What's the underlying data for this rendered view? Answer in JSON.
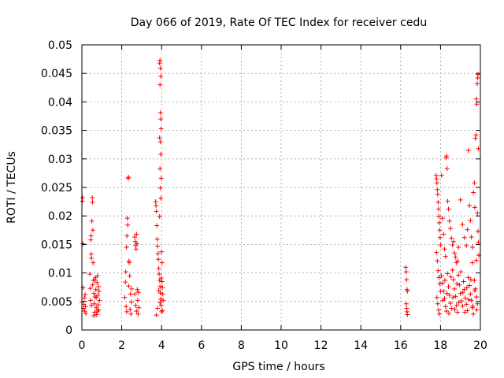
{
  "chart_data": {
    "type": "scatter",
    "title": "Day 066 of 2019, Rate Of TEC Index for receiver cedu",
    "xlabel": "GPS time / hours",
    "ylabel": "ROTI / TECUs",
    "xlim": [
      0,
      20
    ],
    "ylim": [
      0,
      0.05
    ],
    "xticks": [
      "0",
      "2",
      "4",
      "6",
      "8",
      "10",
      "12",
      "14",
      "16",
      "18",
      "20"
    ],
    "yticks": [
      "0",
      "0.005",
      "0.01",
      "0.015",
      "0.02",
      "0.025",
      "0.03",
      "0.035",
      "0.04",
      "0.045",
      "0.05"
    ],
    "grid": true,
    "marker": "plus",
    "color": "#ff0000",
    "series": [
      {
        "name": "ROTI",
        "points": [
          [
            0.0,
            0.0049
          ],
          [
            0.02,
            0.0226
          ],
          [
            0.03,
            0.0232
          ],
          [
            0.05,
            0.0151
          ],
          [
            0.06,
            0.0074
          ],
          [
            0.08,
            0.0038
          ],
          [
            0.1,
            0.0045
          ],
          [
            0.12,
            0.0056
          ],
          [
            0.14,
            0.0033
          ],
          [
            0.16,
            0.0062
          ],
          [
            0.18,
            0.0041
          ],
          [
            0.2,
            0.0029
          ],
          [
            0.4,
            0.0098
          ],
          [
            0.42,
            0.0073
          ],
          [
            0.44,
            0.0052
          ],
          [
            0.45,
            0.0158
          ],
          [
            0.46,
            0.0165
          ],
          [
            0.47,
            0.0133
          ],
          [
            0.48,
            0.0126
          ],
          [
            0.5,
            0.0191
          ],
          [
            0.52,
            0.0232
          ],
          [
            0.53,
            0.0224
          ],
          [
            0.55,
            0.0175
          ],
          [
            0.56,
            0.0118
          ],
          [
            0.58,
            0.0087
          ],
          [
            0.6,
            0.0064
          ],
          [
            0.62,
            0.0046
          ],
          [
            0.64,
            0.0031
          ],
          [
            0.66,
            0.0058
          ],
          [
            0.68,
            0.0092
          ],
          [
            0.7,
            0.0071
          ],
          [
            0.72,
            0.0039
          ],
          [
            0.74,
            0.0027
          ],
          [
            0.76,
            0.0083
          ],
          [
            0.78,
            0.0095
          ],
          [
            0.8,
            0.0061
          ],
          [
            0.82,
            0.0044
          ],
          [
            0.84,
            0.0035
          ],
          [
            0.86,
            0.0068
          ],
          [
            0.88,
            0.0052
          ],
          [
            0.48,
            0.0043
          ],
          [
            0.54,
            0.0079
          ],
          [
            0.6,
            0.0025
          ],
          [
            0.66,
            0.0088
          ],
          [
            0.72,
            0.0057
          ],
          [
            0.78,
            0.0033
          ],
          [
            0.84,
            0.0076
          ],
          [
            2.15,
            0.0057
          ],
          [
            2.18,
            0.0084
          ],
          [
            2.2,
            0.0102
          ],
          [
            2.22,
            0.0041
          ],
          [
            2.24,
            0.0145
          ],
          [
            2.26,
            0.0165
          ],
          [
            2.28,
            0.0196
          ],
          [
            2.3,
            0.0184
          ],
          [
            2.32,
            0.0266
          ],
          [
            2.34,
            0.0268
          ],
          [
            2.36,
            0.0121
          ],
          [
            2.38,
            0.0118
          ],
          [
            2.4,
            0.0095
          ],
          [
            2.42,
            0.0036
          ],
          [
            2.44,
            0.0063
          ],
          [
            2.46,
            0.0028
          ],
          [
            2.48,
            0.0049
          ],
          [
            2.5,
            0.0072
          ],
          [
            2.25,
            0.0032
          ],
          [
            2.35,
            0.0077
          ],
          [
            2.65,
            0.0163
          ],
          [
            2.68,
            0.0155
          ],
          [
            2.7,
            0.0148
          ],
          [
            2.72,
            0.0142
          ],
          [
            2.74,
            0.0168
          ],
          [
            2.76,
            0.0151
          ],
          [
            2.66,
            0.0063
          ],
          [
            2.7,
            0.0043
          ],
          [
            2.74,
            0.0033
          ],
          [
            2.78,
            0.0071
          ],
          [
            2.8,
            0.0052
          ],
          [
            2.82,
            0.0028
          ],
          [
            2.84,
            0.0066
          ],
          [
            2.86,
            0.0039
          ],
          [
            3.7,
            0.0225
          ],
          [
            3.72,
            0.0218
          ],
          [
            3.74,
            0.0208
          ],
          [
            3.76,
            0.0183
          ],
          [
            3.78,
            0.0159
          ],
          [
            3.8,
            0.0147
          ],
          [
            3.82,
            0.0134
          ],
          [
            3.84,
            0.0124
          ],
          [
            3.86,
            0.0108
          ],
          [
            3.88,
            0.0098
          ],
          [
            3.9,
            0.0087
          ],
          [
            3.92,
            0.0076
          ],
          [
            3.94,
            0.0065
          ],
          [
            3.96,
            0.0054
          ],
          [
            3.98,
            0.0043
          ],
          [
            4.0,
            0.0032
          ],
          [
            4.02,
            0.0085
          ],
          [
            4.04,
            0.0075
          ],
          [
            4.06,
            0.0063
          ],
          [
            4.08,
            0.0052
          ],
          [
            3.74,
            0.0026
          ],
          [
            3.8,
            0.0038
          ],
          [
            3.86,
            0.0069
          ],
          [
            3.92,
            0.0048
          ],
          [
            3.98,
            0.0091
          ],
          [
            4.04,
            0.0034
          ],
          [
            3.9,
            0.0468
          ],
          [
            3.92,
            0.0473
          ],
          [
            3.94,
            0.0459
          ],
          [
            3.96,
            0.0445
          ],
          [
            3.92,
            0.043
          ],
          [
            3.94,
            0.0381
          ],
          [
            3.96,
            0.037
          ],
          [
            3.98,
            0.0353
          ],
          [
            3.9,
            0.0337
          ],
          [
            3.94,
            0.033
          ],
          [
            3.96,
            0.0308
          ],
          [
            3.92,
            0.0283
          ],
          [
            3.98,
            0.0266
          ],
          [
            3.94,
            0.0249
          ],
          [
            3.96,
            0.0231
          ],
          [
            3.9,
            0.0199
          ],
          [
            4.0,
            0.0137
          ],
          [
            4.02,
            0.0118
          ],
          [
            16.25,
            0.011
          ],
          [
            16.28,
            0.0102
          ],
          [
            16.3,
            0.0088
          ],
          [
            16.32,
            0.0071
          ],
          [
            16.34,
            0.0068
          ],
          [
            16.28,
            0.0046
          ],
          [
            16.3,
            0.0038
          ],
          [
            16.32,
            0.0032
          ],
          [
            16.34,
            0.0027
          ],
          [
            17.78,
            0.0271
          ],
          [
            17.8,
            0.0265
          ],
          [
            17.82,
            0.0258
          ],
          [
            17.84,
            0.0246
          ],
          [
            17.86,
            0.0238
          ],
          [
            17.88,
            0.0224
          ],
          [
            17.9,
            0.0212
          ],
          [
            17.92,
            0.0199
          ],
          [
            17.94,
            0.0188
          ],
          [
            17.96,
            0.0175
          ],
          [
            17.98,
            0.0162
          ],
          [
            18.0,
            0.0149
          ],
          [
            17.8,
            0.0136
          ],
          [
            17.84,
            0.0121
          ],
          [
            17.88,
            0.0104
          ],
          [
            17.92,
            0.0092
          ],
          [
            17.96,
            0.0081
          ],
          [
            18.0,
            0.0068
          ],
          [
            17.82,
            0.0057
          ],
          [
            17.86,
            0.0046
          ],
          [
            17.9,
            0.0035
          ],
          [
            17.94,
            0.0028
          ],
          [
            18.05,
            0.0271
          ],
          [
            18.1,
            0.0196
          ],
          [
            18.15,
            0.0168
          ],
          [
            18.2,
            0.0142
          ],
          [
            18.25,
            0.0129
          ],
          [
            18.28,
            0.0302
          ],
          [
            18.3,
            0.0305
          ],
          [
            18.33,
            0.0283
          ],
          [
            18.36,
            0.0226
          ],
          [
            18.4,
            0.0212
          ],
          [
            18.45,
            0.0191
          ],
          [
            18.5,
            0.0178
          ],
          [
            18.55,
            0.0161
          ],
          [
            18.6,
            0.0149
          ],
          [
            18.65,
            0.0155
          ],
          [
            18.7,
            0.0135
          ],
          [
            18.75,
            0.0128
          ],
          [
            18.8,
            0.0118
          ],
          [
            18.85,
            0.0121
          ],
          [
            18.9,
            0.0145
          ],
          [
            18.05,
            0.0095
          ],
          [
            18.1,
            0.0082
          ],
          [
            18.15,
            0.0068
          ],
          [
            18.2,
            0.0055
          ],
          [
            18.25,
            0.0041
          ],
          [
            18.3,
            0.0033
          ],
          [
            18.35,
            0.0099
          ],
          [
            18.4,
            0.0076
          ],
          [
            18.45,
            0.0061
          ],
          [
            18.5,
            0.0047
          ],
          [
            18.55,
            0.0038
          ],
          [
            18.6,
            0.0105
          ],
          [
            18.65,
            0.0088
          ],
          [
            18.7,
            0.0072
          ],
          [
            18.75,
            0.0059
          ],
          [
            18.8,
            0.0043
          ],
          [
            18.85,
            0.0031
          ],
          [
            18.9,
            0.0096
          ],
          [
            18.95,
            0.0079
          ],
          [
            19.0,
            0.0064
          ],
          [
            19.05,
            0.0051
          ],
          [
            19.1,
            0.0042
          ],
          [
            19.15,
            0.0085
          ],
          [
            19.2,
            0.0071
          ],
          [
            19.25,
            0.0056
          ],
          [
            19.3,
            0.0045
          ],
          [
            19.35,
            0.0034
          ],
          [
            19.4,
            0.0092
          ],
          [
            19.45,
            0.0078
          ],
          [
            19.5,
            0.0063
          ],
          [
            19.55,
            0.0052
          ],
          [
            19.6,
            0.0039
          ],
          [
            19.65,
            0.0028
          ],
          [
            19.7,
            0.0087
          ],
          [
            19.75,
            0.0072
          ],
          [
            19.8,
            0.0058
          ],
          [
            19.85,
            0.0046
          ],
          [
            18.12,
            0.0052
          ],
          [
            18.22,
            0.0087
          ],
          [
            18.32,
            0.0064
          ],
          [
            18.42,
            0.0029
          ],
          [
            18.52,
            0.0093
          ],
          [
            18.62,
            0.0057
          ],
          [
            18.72,
            0.0036
          ],
          [
            18.82,
            0.0081
          ],
          [
            18.92,
            0.0048
          ],
          [
            19.02,
            0.0102
          ],
          [
            19.12,
            0.0066
          ],
          [
            19.22,
            0.0031
          ],
          [
            19.32,
            0.0074
          ],
          [
            19.42,
            0.0053
          ],
          [
            19.52,
            0.0088
          ],
          [
            19.62,
            0.0042
          ],
          [
            19.72,
            0.0069
          ],
          [
            19.82,
            0.0035
          ],
          [
            19.0,
            0.0228
          ],
          [
            19.1,
            0.0185
          ],
          [
            19.2,
            0.0162
          ],
          [
            19.3,
            0.0148
          ],
          [
            19.35,
            0.0176
          ],
          [
            19.4,
            0.0315
          ],
          [
            19.45,
            0.0218
          ],
          [
            19.5,
            0.0192
          ],
          [
            19.55,
            0.0163
          ],
          [
            19.6,
            0.0145
          ],
          [
            19.65,
            0.0241
          ],
          [
            19.7,
            0.0258
          ],
          [
            19.72,
            0.0215
          ],
          [
            19.75,
            0.0336
          ],
          [
            19.78,
            0.0342
          ],
          [
            19.8,
            0.0405
          ],
          [
            19.82,
            0.0396
          ],
          [
            19.84,
            0.0432
          ],
          [
            19.86,
            0.0442
          ],
          [
            19.88,
            0.0448
          ],
          [
            19.9,
            0.0318
          ],
          [
            19.85,
            0.0205
          ],
          [
            19.88,
            0.0173
          ],
          [
            19.9,
            0.0154
          ],
          [
            19.92,
            0.0131
          ],
          [
            19.8,
            0.0122
          ],
          [
            19.6,
            0.0118
          ]
        ]
      }
    ]
  }
}
